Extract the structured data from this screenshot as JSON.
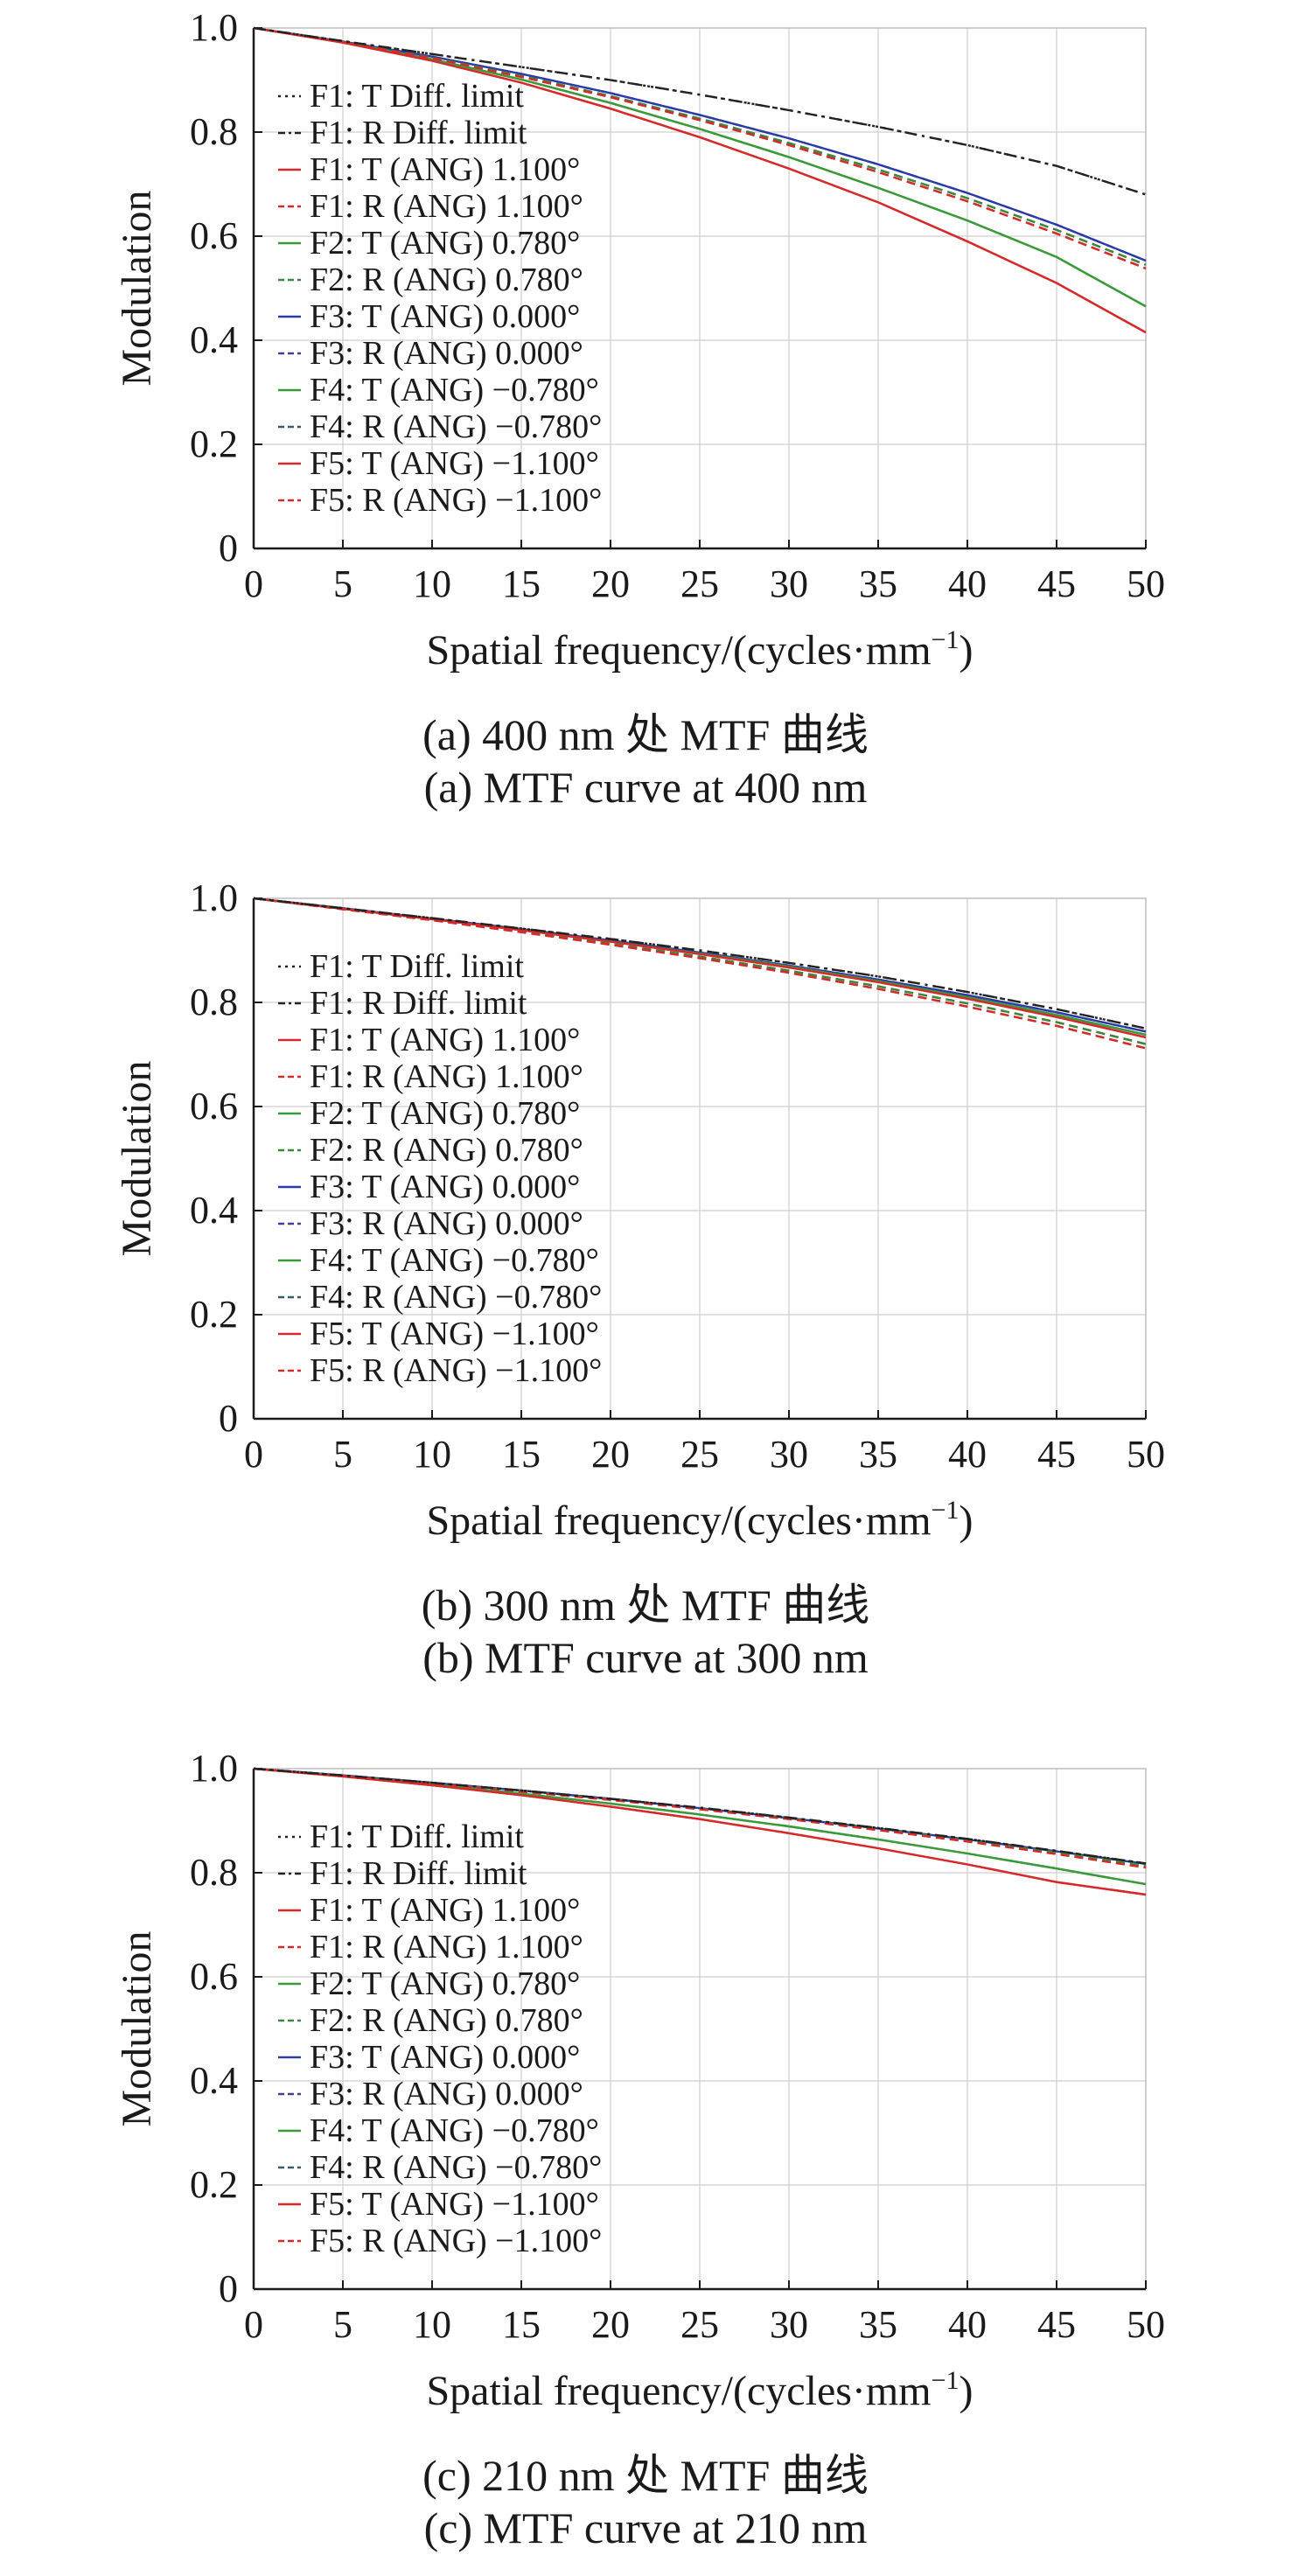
{
  "figure": {
    "xlabel": "Spatial frequency/(cycles·mm",
    "xlabel_sup": "−1",
    "xlabel_end": ")",
    "ylabel": "Modulation"
  },
  "chart_data": [
    {
      "type": "line",
      "caption_cn": "(a) 400 nm 处 MTF 曲线",
      "caption_en": "(a) MTF curve at 400 nm",
      "xlabel": "Spatial frequency/(cycles·mm⁻¹)",
      "ylabel": "Modulation",
      "xlim": [
        0,
        50
      ],
      "ylim": [
        0,
        1.0
      ],
      "xticks": [
        "0",
        "5",
        "10",
        "15",
        "20",
        "25",
        "30",
        "35",
        "40",
        "45",
        "50"
      ],
      "yticks": [
        "0",
        "0.2",
        "0.4",
        "0.6",
        "0.8",
        "1.0"
      ],
      "grid": true,
      "legend_position": "upper-left",
      "x": [
        0,
        5,
        10,
        15,
        20,
        25,
        30,
        35,
        40,
        45,
        50
      ],
      "series": [
        {
          "name": "F1: T Diff. limit",
          "color": "#222222",
          "dash": "dot",
          "values": [
            1.0,
            0.975,
            0.95,
            0.925,
            0.9,
            0.872,
            0.842,
            0.81,
            0.775,
            0.735,
            0.68
          ]
        },
        {
          "name": "F1: R Diff. limit",
          "color": "#222222",
          "dash": "dashdot",
          "values": [
            1.0,
            0.975,
            0.95,
            0.925,
            0.9,
            0.872,
            0.842,
            0.81,
            0.775,
            0.735,
            0.68
          ]
        },
        {
          "name": "F1: T (ANG) 1.100°",
          "color": "#d62a2a",
          "dash": "solid",
          "values": [
            1.0,
            0.972,
            0.937,
            0.895,
            0.845,
            0.79,
            0.73,
            0.665,
            0.59,
            0.51,
            0.415
          ]
        },
        {
          "name": "F1: R (ANG) 1.100°",
          "color": "#d62a2a",
          "dash": "dash",
          "values": [
            1.0,
            0.973,
            0.942,
            0.906,
            0.867,
            0.823,
            0.775,
            0.723,
            0.667,
            0.605,
            0.538
          ]
        },
        {
          "name": "F2: T (ANG) 0.780°",
          "color": "#3a9a3a",
          "dash": "solid",
          "values": [
            1.0,
            0.973,
            0.94,
            0.901,
            0.856,
            0.806,
            0.752,
            0.693,
            0.63,
            0.56,
            0.465
          ]
        },
        {
          "name": "F2: R (ANG) 0.780°",
          "color": "#3a8a3a",
          "dash": "dash",
          "values": [
            1.0,
            0.973,
            0.943,
            0.908,
            0.869,
            0.826,
            0.779,
            0.728,
            0.673,
            0.612,
            0.545
          ]
        },
        {
          "name": "F3: T (ANG) 0.000°",
          "color": "#2a3aa8",
          "dash": "solid",
          "values": [
            1.0,
            0.974,
            0.945,
            0.912,
            0.875,
            0.833,
            0.788,
            0.738,
            0.683,
            0.622,
            0.553
          ]
        },
        {
          "name": "F3: R (ANG) 0.000°",
          "color": "#4a3a9a",
          "dash": "dash",
          "values": [
            1.0,
            0.974,
            0.945,
            0.912,
            0.875,
            0.833,
            0.788,
            0.738,
            0.683,
            0.622,
            0.553
          ]
        },
        {
          "name": "F4: T (ANG) −0.780°",
          "color": "#3a9a3a",
          "dash": "solid",
          "values": [
            1.0,
            0.973,
            0.94,
            0.901,
            0.856,
            0.806,
            0.752,
            0.693,
            0.63,
            0.56,
            0.465
          ]
        },
        {
          "name": "F4: R (ANG) −0.780°",
          "color": "#3a5a6a",
          "dash": "dash",
          "values": [
            1.0,
            0.973,
            0.943,
            0.908,
            0.869,
            0.826,
            0.779,
            0.728,
            0.673,
            0.612,
            0.545
          ]
        },
        {
          "name": "F5: T (ANG) −1.100°",
          "color": "#d62a2a",
          "dash": "solid",
          "values": [
            1.0,
            0.972,
            0.937,
            0.895,
            0.845,
            0.79,
            0.73,
            0.665,
            0.59,
            0.51,
            0.415
          ]
        },
        {
          "name": "F5: R (ANG) −1.100°",
          "color": "#d62a2a",
          "dash": "dash",
          "values": [
            1.0,
            0.973,
            0.942,
            0.906,
            0.867,
            0.823,
            0.775,
            0.723,
            0.667,
            0.605,
            0.538
          ]
        }
      ]
    },
    {
      "type": "line",
      "caption_cn": "(b) 300 nm 处 MTF 曲线",
      "caption_en": "(b) MTF curve at 300 nm",
      "xlabel": "Spatial frequency/(cycles·mm⁻¹)",
      "ylabel": "Modulation",
      "xlim": [
        0,
        50
      ],
      "ylim": [
        0,
        1.0
      ],
      "xticks": [
        "0",
        "5",
        "10",
        "15",
        "20",
        "25",
        "30",
        "35",
        "40",
        "45",
        "50"
      ],
      "yticks": [
        "0",
        "0.2",
        "0.4",
        "0.6",
        "0.8",
        "1.0"
      ],
      "grid": true,
      "legend_position": "upper-left",
      "x": [
        0,
        5,
        10,
        15,
        20,
        25,
        30,
        35,
        40,
        45,
        50
      ],
      "series": [
        {
          "name": "F1: T Diff. limit",
          "color": "#222222",
          "dash": "dot",
          "values": [
            1.0,
            0.981,
            0.962,
            0.942,
            0.922,
            0.9,
            0.876,
            0.85,
            0.82,
            0.787,
            0.75
          ]
        },
        {
          "name": "F1: R Diff. limit",
          "color": "#222222",
          "dash": "dashdot",
          "values": [
            1.0,
            0.981,
            0.962,
            0.942,
            0.922,
            0.9,
            0.876,
            0.85,
            0.82,
            0.787,
            0.75
          ]
        },
        {
          "name": "F1: T (ANG) 1.100°",
          "color": "#d62a2a",
          "dash": "solid",
          "values": [
            1.0,
            0.98,
            0.96,
            0.939,
            0.917,
            0.893,
            0.867,
            0.839,
            0.807,
            0.772,
            0.733
          ]
        },
        {
          "name": "F1: R (ANG) 1.100°",
          "color": "#d62a2a",
          "dash": "dash",
          "values": [
            1.0,
            0.979,
            0.958,
            0.935,
            0.911,
            0.885,
            0.857,
            0.826,
            0.792,
            0.755,
            0.712
          ]
        },
        {
          "name": "F2: T (ANG) 0.780°",
          "color": "#3a9a3a",
          "dash": "solid",
          "values": [
            1.0,
            0.98,
            0.96,
            0.939,
            0.917,
            0.894,
            0.869,
            0.841,
            0.81,
            0.776,
            0.738
          ]
        },
        {
          "name": "F2: R (ANG) 0.780°",
          "color": "#3a8a3a",
          "dash": "dash",
          "values": [
            1.0,
            0.98,
            0.959,
            0.937,
            0.913,
            0.888,
            0.861,
            0.831,
            0.798,
            0.762,
            0.72
          ]
        },
        {
          "name": "F3: T (ANG) 0.000°",
          "color": "#2a3aa8",
          "dash": "solid",
          "values": [
            1.0,
            0.981,
            0.961,
            0.941,
            0.919,
            0.896,
            0.871,
            0.844,
            0.814,
            0.781,
            0.744
          ]
        },
        {
          "name": "F3: R (ANG) 0.000°",
          "color": "#4a3a9a",
          "dash": "dash",
          "values": [
            1.0,
            0.981,
            0.961,
            0.941,
            0.919,
            0.896,
            0.871,
            0.844,
            0.814,
            0.781,
            0.744
          ]
        },
        {
          "name": "F4: T (ANG) −0.780°",
          "color": "#3a9a3a",
          "dash": "solid",
          "values": [
            1.0,
            0.98,
            0.96,
            0.939,
            0.917,
            0.894,
            0.869,
            0.841,
            0.81,
            0.776,
            0.738
          ]
        },
        {
          "name": "F4: R (ANG) −0.780°",
          "color": "#3a5a6a",
          "dash": "dash",
          "values": [
            1.0,
            0.98,
            0.959,
            0.937,
            0.913,
            0.888,
            0.861,
            0.831,
            0.798,
            0.762,
            0.72
          ]
        },
        {
          "name": "F5: T (ANG) −1.100°",
          "color": "#d62a2a",
          "dash": "solid",
          "values": [
            1.0,
            0.98,
            0.96,
            0.939,
            0.917,
            0.893,
            0.867,
            0.839,
            0.807,
            0.772,
            0.733
          ]
        },
        {
          "name": "F5: R (ANG) −1.100°",
          "color": "#d62a2a",
          "dash": "dash",
          "values": [
            1.0,
            0.979,
            0.958,
            0.935,
            0.911,
            0.885,
            0.857,
            0.826,
            0.792,
            0.755,
            0.712
          ]
        }
      ]
    },
    {
      "type": "line",
      "caption_cn": "(c) 210 nm 处 MTF 曲线",
      "caption_en": "(c) MTF curve at 210 nm",
      "xlabel": "Spatial frequency/(cycles·mm⁻¹)",
      "ylabel": "Modulation",
      "xlim": [
        0,
        50
      ],
      "ylim": [
        0,
        1.0
      ],
      "xticks": [
        "0",
        "5",
        "10",
        "15",
        "20",
        "25",
        "30",
        "35",
        "40",
        "45",
        "50"
      ],
      "yticks": [
        "0",
        "0.2",
        "0.4",
        "0.6",
        "0.8",
        "1.0"
      ],
      "grid": true,
      "legend_position": "upper-left",
      "x": [
        0,
        5,
        10,
        15,
        20,
        25,
        30,
        35,
        40,
        45,
        50
      ],
      "series": [
        {
          "name": "F1: T Diff. limit",
          "color": "#222222",
          "dash": "dot",
          "values": [
            1.0,
            0.987,
            0.973,
            0.958,
            0.942,
            0.925,
            0.906,
            0.886,
            0.865,
            0.842,
            0.818
          ]
        },
        {
          "name": "F1: R Diff. limit",
          "color": "#222222",
          "dash": "dashdot",
          "values": [
            1.0,
            0.987,
            0.973,
            0.958,
            0.942,
            0.925,
            0.906,
            0.886,
            0.865,
            0.842,
            0.818
          ]
        },
        {
          "name": "F1: T (ANG) 1.100°",
          "color": "#d62a2a",
          "dash": "solid",
          "values": [
            1.0,
            0.985,
            0.968,
            0.949,
            0.927,
            0.903,
            0.876,
            0.847,
            0.816,
            0.782,
            0.758
          ]
        },
        {
          "name": "F1: R (ANG) 1.100°",
          "color": "#d62a2a",
          "dash": "dash",
          "values": [
            1.0,
            0.986,
            0.972,
            0.956,
            0.94,
            0.922,
            0.903,
            0.882,
            0.86,
            0.836,
            0.81
          ]
        },
        {
          "name": "F2: T (ANG) 0.780°",
          "color": "#3a9a3a",
          "dash": "solid",
          "values": [
            1.0,
            0.986,
            0.97,
            0.952,
            0.933,
            0.912,
            0.889,
            0.864,
            0.837,
            0.808,
            0.778
          ]
        },
        {
          "name": "F2: R (ANG) 0.780°",
          "color": "#3a8a3a",
          "dash": "dash",
          "values": [
            1.0,
            0.986,
            0.972,
            0.957,
            0.941,
            0.923,
            0.904,
            0.884,
            0.862,
            0.839,
            0.814
          ]
        },
        {
          "name": "F3: T (ANG) 0.000°",
          "color": "#2a3aa8",
          "dash": "solid",
          "values": [
            1.0,
            0.987,
            0.973,
            0.958,
            0.942,
            0.924,
            0.905,
            0.885,
            0.864,
            0.841,
            0.817
          ]
        },
        {
          "name": "F3: R (ANG) 0.000°",
          "color": "#4a3a9a",
          "dash": "dash",
          "values": [
            1.0,
            0.987,
            0.973,
            0.958,
            0.942,
            0.924,
            0.905,
            0.885,
            0.864,
            0.841,
            0.817
          ]
        },
        {
          "name": "F4: T (ANG) −0.780°",
          "color": "#3a9a3a",
          "dash": "solid",
          "values": [
            1.0,
            0.986,
            0.97,
            0.952,
            0.933,
            0.912,
            0.889,
            0.864,
            0.837,
            0.808,
            0.778
          ]
        },
        {
          "name": "F4: R (ANG) −0.780°",
          "color": "#3a5a6a",
          "dash": "dash",
          "values": [
            1.0,
            0.986,
            0.972,
            0.957,
            0.941,
            0.923,
            0.904,
            0.884,
            0.862,
            0.839,
            0.814
          ]
        },
        {
          "name": "F5: T (ANG) −1.100°",
          "color": "#d62a2a",
          "dash": "solid",
          "values": [
            1.0,
            0.985,
            0.968,
            0.949,
            0.927,
            0.903,
            0.876,
            0.847,
            0.816,
            0.782,
            0.758
          ]
        },
        {
          "name": "F5: R (ANG) −1.100°",
          "color": "#d62a2a",
          "dash": "dash",
          "values": [
            1.0,
            0.986,
            0.972,
            0.956,
            0.94,
            0.922,
            0.903,
            0.882,
            0.86,
            0.836,
            0.81
          ]
        }
      ]
    }
  ]
}
